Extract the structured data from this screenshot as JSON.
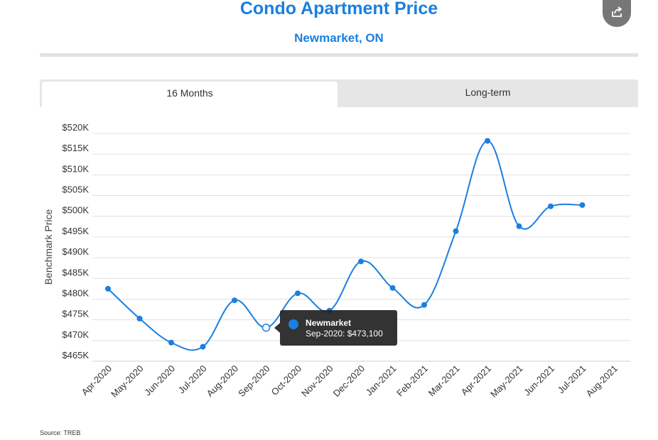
{
  "header": {
    "title": "Condo Apartment Price",
    "subtitle": "Newmarket, ON"
  },
  "share": {
    "icon": "share-icon"
  },
  "tabs": [
    {
      "label": "16 Months",
      "active": true
    },
    {
      "label": "Long-term",
      "active": false
    }
  ],
  "footer": {
    "source": "Source: TREB"
  },
  "tooltip": {
    "series": "Newmarket",
    "text": "Sep-2020: $473,100",
    "color": "#1a7fe0"
  },
  "colors": {
    "accent": "#1a7fe0",
    "line": "#1a7fe0"
  },
  "chart_data": {
    "type": "line",
    "title": "",
    "xlabel": "",
    "ylabel": "Benchmark Price",
    "categories": [
      "Apr-2020",
      "May-2020",
      "Jun-2020",
      "Jul-2020",
      "Aug-2020",
      "Sep-2020",
      "Oct-2020",
      "Nov-2020",
      "Dec-2020",
      "Jan-2021",
      "Feb-2021",
      "Mar-2021",
      "Apr-2021",
      "May-2021",
      "Jun-2021",
      "Jul-2021",
      "Aug-2021"
    ],
    "yticks": [
      "$465K",
      "$470K",
      "$475K",
      "$480K",
      "$485K",
      "$490K",
      "$495K",
      "$500K",
      "$505K",
      "$510K",
      "$515K",
      "$520K"
    ],
    "ylim": [
      465000,
      520000
    ],
    "grid": true,
    "series": [
      {
        "name": "Newmarket",
        "values": [
          482500,
          475300,
          469500,
          468500,
          479700,
          473100,
          481400,
          477200,
          489100,
          482700,
          478600,
          496400,
          518200,
          497600,
          502400,
          502700,
          null
        ]
      }
    ]
  }
}
